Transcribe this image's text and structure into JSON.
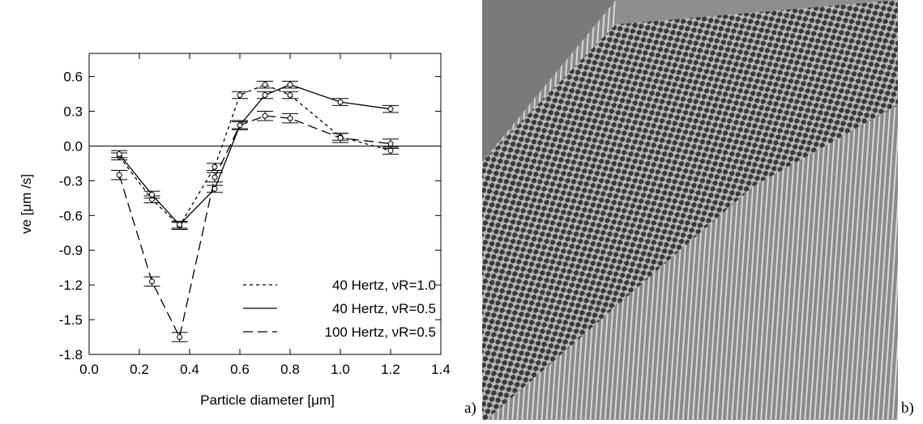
{
  "chart_data": {
    "type": "line",
    "xlabel": "Particle diameter [μm]",
    "ylabel": "ve [μm /s]",
    "xlim": [
      0,
      1.4
    ],
    "ylim": [
      -1.8,
      0.8
    ],
    "xticks": [
      {
        "value": 0,
        "label": "0.0"
      },
      {
        "value": 0.2,
        "label": "0.2"
      },
      {
        "value": 0.4,
        "label": "0.4"
      },
      {
        "value": 0.6,
        "label": "0.6"
      },
      {
        "value": 0.8,
        "label": "0.8"
      },
      {
        "value": 1.0,
        "label": "1.0"
      },
      {
        "value": 1.2,
        "label": "1.2"
      },
      {
        "value": 1.4,
        "label": "1.4"
      }
    ],
    "yticks": [
      {
        "value": 0.6,
        "label": "0.6"
      },
      {
        "value": 0.3,
        "label": "0.3"
      },
      {
        "value": 0,
        "label": "0.0"
      },
      {
        "value": -0.3,
        "label": "-0.3"
      },
      {
        "value": -0.6,
        "label": "-0.6"
      },
      {
        "value": -0.9,
        "label": "-0.9"
      },
      {
        "value": -1.2,
        "label": "-1.2"
      },
      {
        "value": -1.5,
        "label": "-1.5"
      },
      {
        "value": -1.8,
        "label": "-1.8"
      }
    ],
    "hline": 0,
    "x": [
      0.12,
      0.25,
      0.36,
      0.5,
      0.6,
      0.7,
      0.8,
      1.0,
      1.2
    ],
    "series": [
      {
        "name": "40 Hertz, νR=1.0",
        "color": "#000000",
        "dash": "short",
        "error": 0.03,
        "values": [
          -0.09,
          -0.46,
          -0.69,
          -0.18,
          0.44,
          0.53,
          0.44,
          0.08,
          -0.04
        ]
      },
      {
        "name": "40 Hertz, νR=0.5",
        "color": "#000000",
        "dash": "solid",
        "error": 0.03,
        "values": [
          -0.07,
          -0.42,
          -0.68,
          -0.37,
          0.18,
          0.44,
          0.53,
          0.38,
          0.32
        ]
      },
      {
        "name": "100 Hertz, νR=0.5",
        "color": "#000000",
        "dash": "long",
        "error": 0.04,
        "values": [
          -0.25,
          -1.17,
          -1.65,
          -0.27,
          0.18,
          0.26,
          0.24,
          0.07,
          0.02
        ]
      }
    ]
  },
  "panel_labels": [
    "a)",
    "b)"
  ]
}
